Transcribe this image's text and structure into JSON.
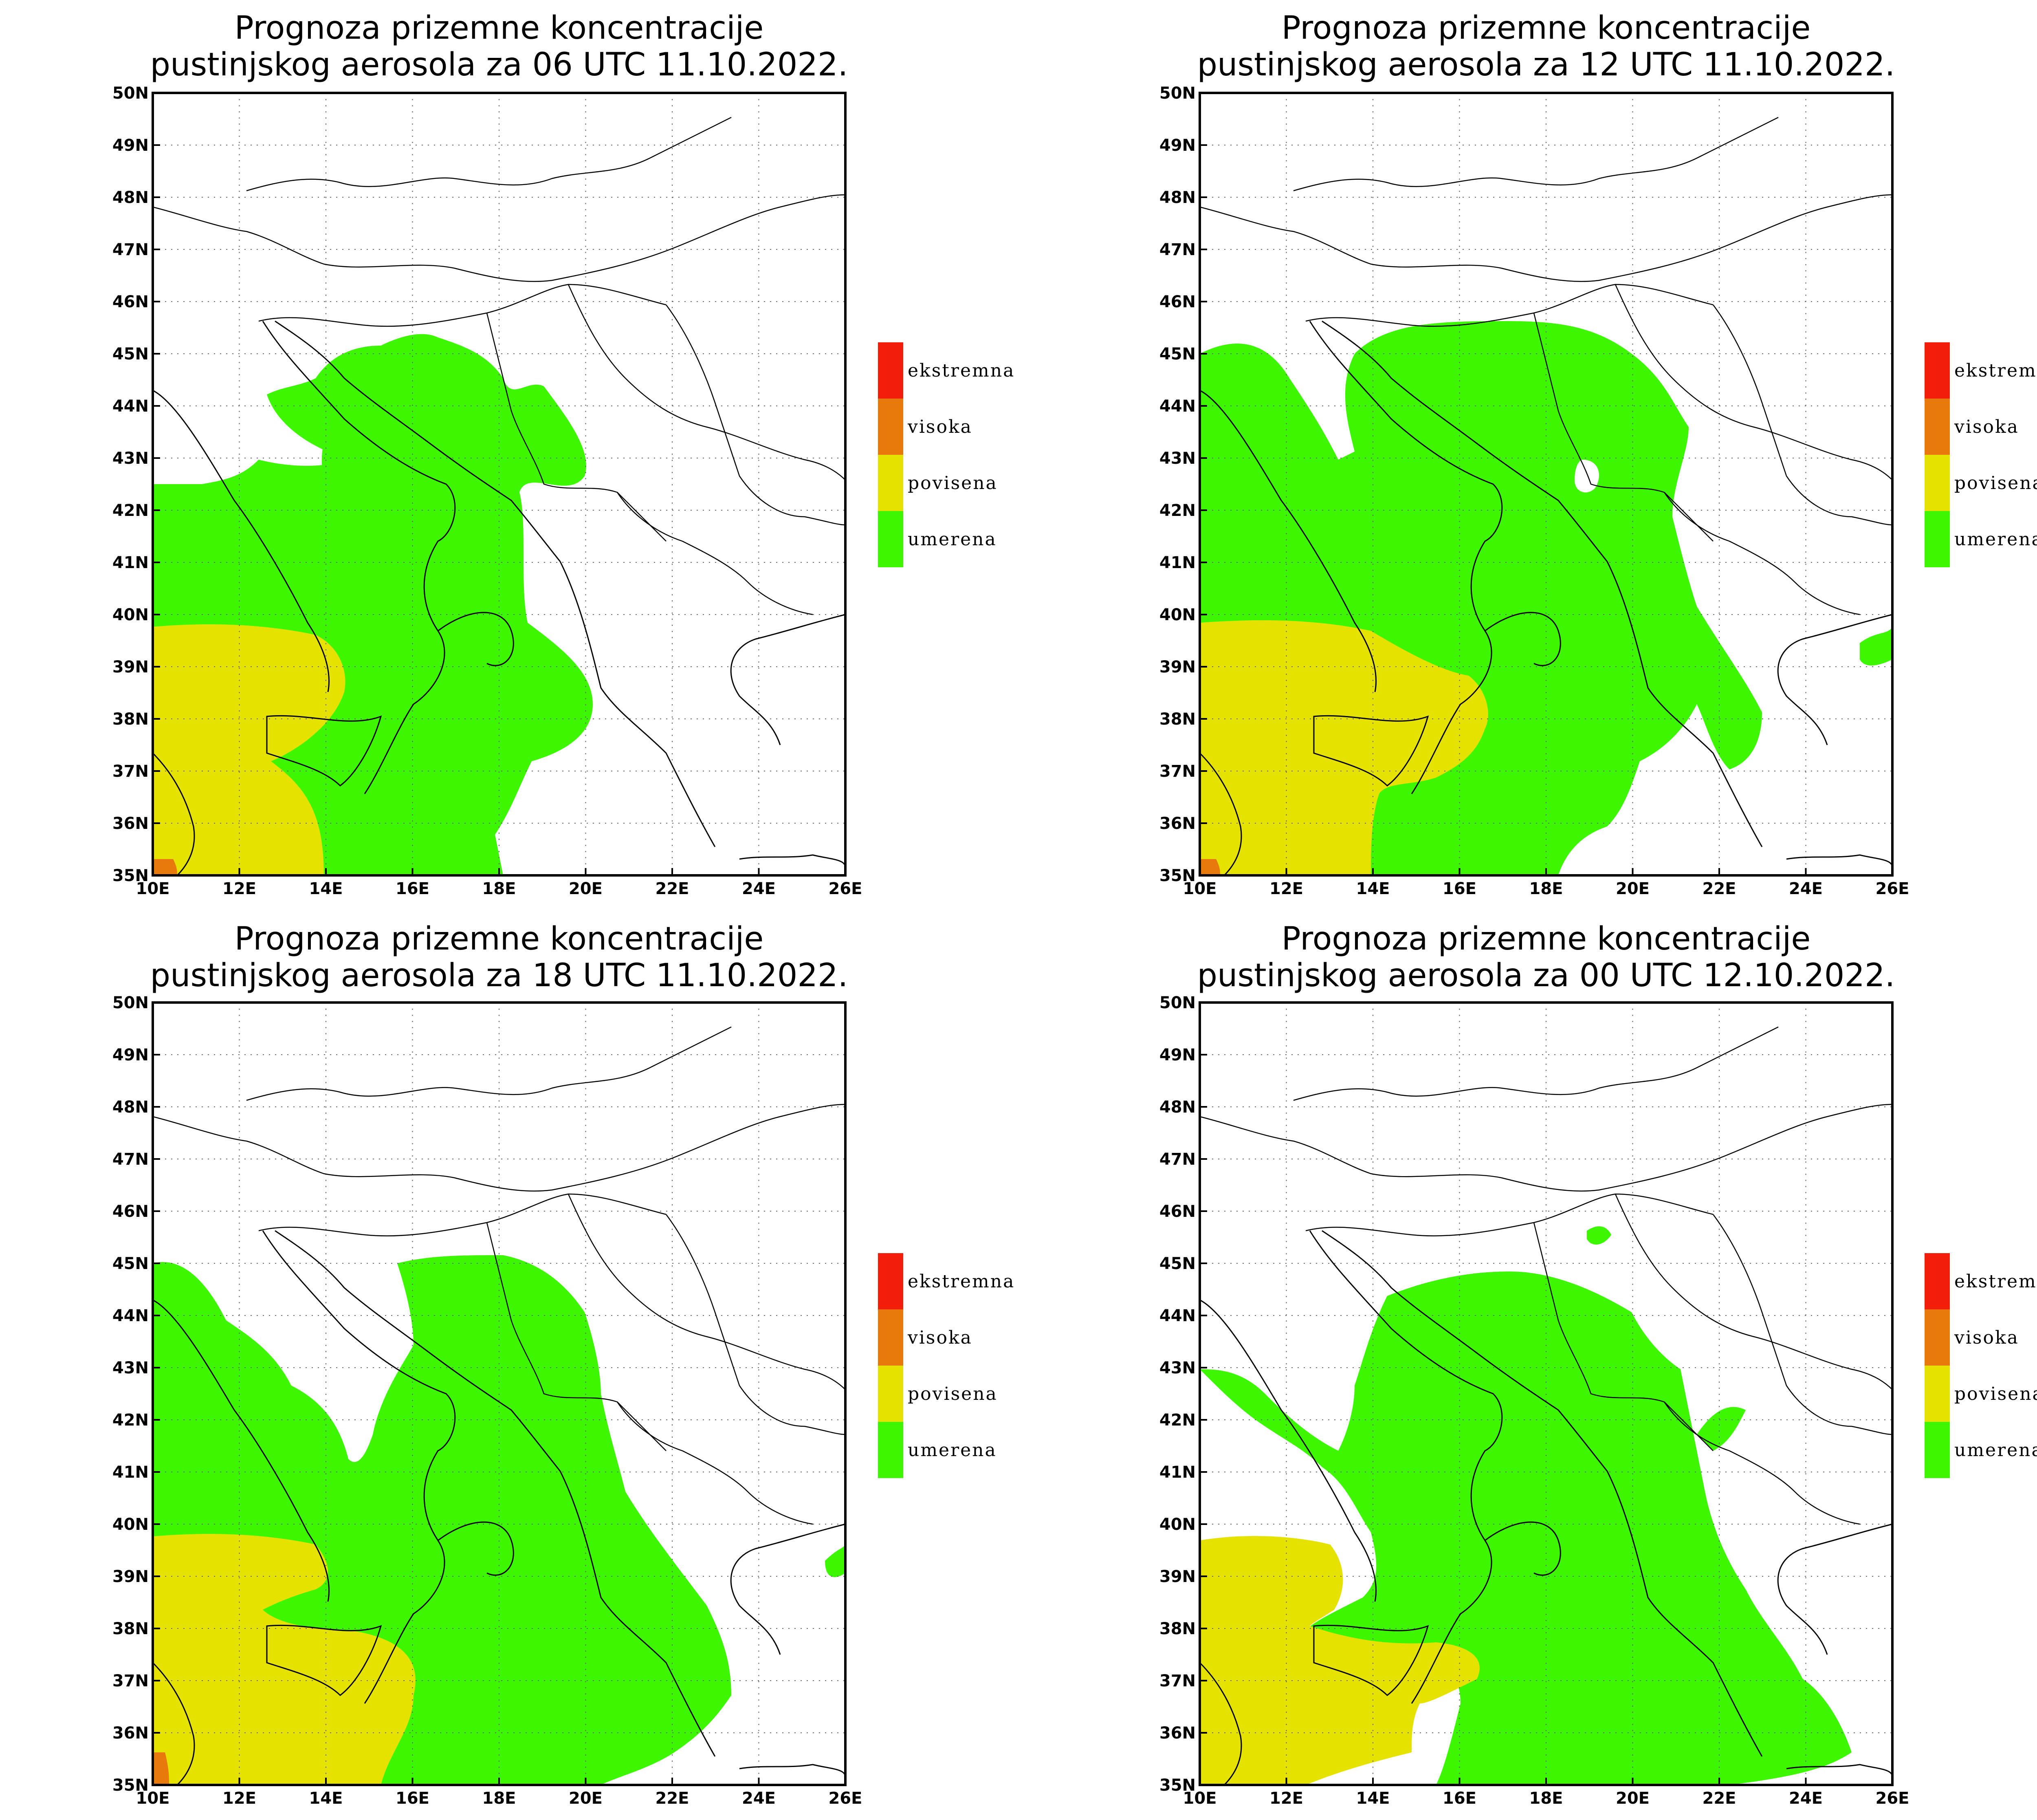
{
  "panels": [
    {
      "id": "p1",
      "title_line1": "Prognoza prizemne koncentracije",
      "title_line2": "pustinjskog aerosola za 06 UTC 11.10.2022."
    },
    {
      "id": "p2",
      "title_line1": "Prognoza prizemne koncentracije",
      "title_line2": "pustinjskog aerosola za 12 UTC 11.10.2022."
    },
    {
      "id": "p3",
      "title_line1": "Prognoza prizemne koncentracije",
      "title_line2": "pustinjskog aerosola za 18 UTC 11.10.2022."
    },
    {
      "id": "p4",
      "title_line1": "Prognoza prizemne koncentracije",
      "title_line2": "pustinjskog aerosola za 00 UTC 12.10.2022."
    }
  ],
  "axes": {
    "lon_labels": [
      "10E",
      "12E",
      "14E",
      "16E",
      "18E",
      "20E",
      "22E",
      "24E",
      "26E"
    ],
    "lat_labels": [
      "35N",
      "36N",
      "37N",
      "38N",
      "39N",
      "40N",
      "41N",
      "42N",
      "43N",
      "44N",
      "45N",
      "46N",
      "47N",
      "48N",
      "49N",
      "50N"
    ],
    "lon_range": [
      10,
      26
    ],
    "lat_range": [
      35,
      50
    ],
    "grid": "dotted"
  },
  "legend": [
    {
      "label": "ekstremna",
      "color": "#f01e0a"
    },
    {
      "label": "visoka",
      "color": "#e87a0c"
    },
    {
      "label": "povisena",
      "color": "#e6e200"
    },
    {
      "label": "umerena",
      "color": "#3cf700"
    }
  ],
  "chart_data": [
    {
      "type": "map",
      "time": "06 UTC 11.10.2022.",
      "categories": [
        "ekstremna",
        "visoka",
        "povisena",
        "umerena"
      ]
    },
    {
      "type": "map",
      "time": "12 UTC 11.10.2022.",
      "categories": [
        "ekstremna",
        "visoka",
        "povisena",
        "umerena"
      ]
    },
    {
      "type": "map",
      "time": "18 UTC 11.10.2022.",
      "categories": [
        "ekstremna",
        "visoka",
        "povisena",
        "umerena"
      ]
    },
    {
      "type": "map",
      "time": "00 UTC 12.10.2022.",
      "categories": [
        "ekstremna",
        "visoka",
        "povisena",
        "umerena"
      ]
    }
  ]
}
